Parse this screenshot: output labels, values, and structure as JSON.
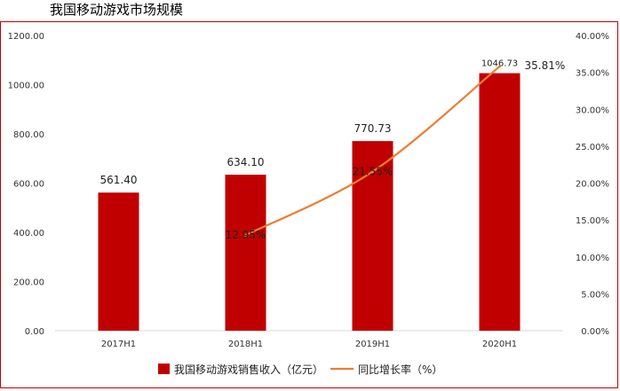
{
  "page_title": "我国移动游戏市场规模",
  "chart_data": {
    "type": "bar",
    "categories": [
      "2017H1",
      "2018H1",
      "2019H1",
      "2020H1"
    ],
    "series": [
      {
        "name": "我国移动游戏销售收入（亿元）",
        "type": "bar",
        "axis": "left",
        "values": [
          561.4,
          634.1,
          770.73,
          1046.73
        ],
        "labels": [
          "561.40",
          "634.10",
          "770.73",
          "1046.73"
        ],
        "color": "#c00000"
      },
      {
        "name": "同比增长率（%）",
        "type": "line",
        "axis": "right",
        "values": [
          null,
          12.95,
          21.55,
          35.81
        ],
        "labels": [
          "",
          "12.95%",
          "21.55%",
          "35.81%"
        ],
        "color": "#ed7d31"
      }
    ],
    "y_left": {
      "ylim": [
        0,
        1200
      ],
      "ticks": [
        "0.00",
        "200.00",
        "400.00",
        "600.00",
        "800.00",
        "1000.00",
        "1200.00"
      ]
    },
    "y_right": {
      "ylim": [
        0,
        40
      ],
      "ticks": [
        "0.00%",
        "5.00%",
        "10.00%",
        "15.00%",
        "20.00%",
        "25.00%",
        "30.00%",
        "35.00%",
        "40.00%"
      ]
    },
    "legend": {
      "position": "bottom",
      "items": [
        "我国移动游戏销售收入（亿元）",
        "同比增长率（%）"
      ]
    },
    "grid": false
  }
}
